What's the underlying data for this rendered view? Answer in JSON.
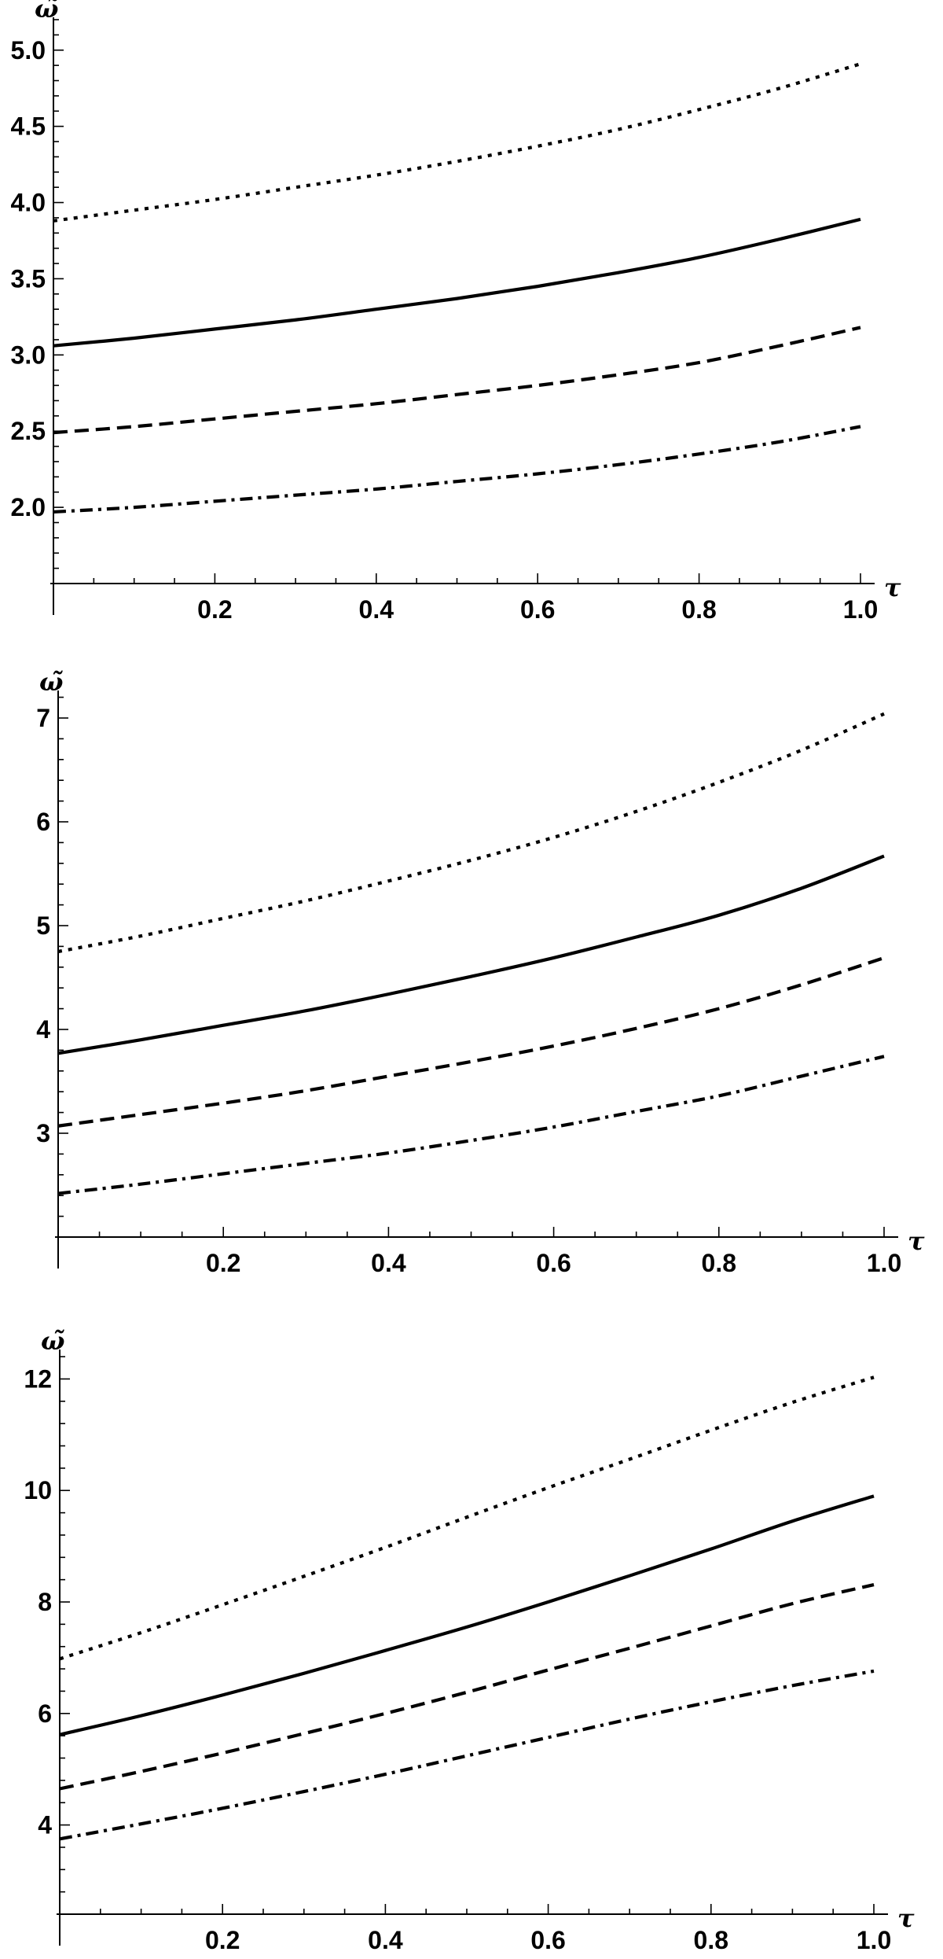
{
  "chart_data": [
    {
      "type": "line",
      "xlabel": "τ",
      "ylabel": "ω̃",
      "xlim": [
        0,
        1.0
      ],
      "ylim": [
        1.5,
        5.2
      ],
      "x_ticks": [
        0.2,
        0.4,
        0.6,
        0.8,
        1.0
      ],
      "x_tick_labels": [
        "0.2",
        "0.4",
        "0.6",
        "0.8",
        "1.0"
      ],
      "y_ticks": [
        2.0,
        2.5,
        3.0,
        3.5,
        4.0,
        4.5,
        5.0
      ],
      "y_tick_labels": [
        "2.0",
        "2.5",
        "3.0",
        "3.5",
        "4.0",
        "4.5",
        "5.0"
      ],
      "x": [
        0,
        0.1,
        0.2,
        0.3,
        0.4,
        0.5,
        0.6,
        0.7,
        0.8,
        0.9,
        1.0
      ],
      "series": [
        {
          "style": "dotted",
          "values": [
            3.88,
            3.95,
            4.02,
            4.1,
            4.18,
            4.27,
            4.37,
            4.48,
            4.61,
            4.75,
            4.91
          ]
        },
        {
          "style": "solid",
          "values": [
            3.06,
            3.11,
            3.17,
            3.23,
            3.3,
            3.37,
            3.45,
            3.54,
            3.64,
            3.76,
            3.89
          ]
        },
        {
          "style": "dashed",
          "values": [
            2.49,
            2.53,
            2.58,
            2.63,
            2.68,
            2.74,
            2.8,
            2.87,
            2.95,
            3.06,
            3.18
          ]
        },
        {
          "style": "dash-dot",
          "values": [
            1.97,
            2.0,
            2.04,
            2.08,
            2.12,
            2.17,
            2.22,
            2.28,
            2.35,
            2.43,
            2.53
          ]
        }
      ]
    },
    {
      "type": "line",
      "xlabel": "τ",
      "ylabel": "ω̃",
      "xlim": [
        0,
        1.0
      ],
      "ylim": [
        2.0,
        7.25
      ],
      "x_ticks": [
        0.2,
        0.4,
        0.6,
        0.8,
        1.0
      ],
      "x_tick_labels": [
        "0.2",
        "0.4",
        "0.6",
        "0.8",
        "1.0"
      ],
      "y_ticks": [
        3,
        4,
        5,
        6,
        7
      ],
      "y_tick_labels": [
        "3",
        "4",
        "5",
        "6",
        "7"
      ],
      "x": [
        0,
        0.1,
        0.2,
        0.3,
        0.4,
        0.5,
        0.6,
        0.7,
        0.8,
        0.9,
        1.0
      ],
      "series": [
        {
          "style": "dotted",
          "values": [
            4.75,
            4.9,
            5.07,
            5.24,
            5.43,
            5.63,
            5.85,
            6.1,
            6.38,
            6.69,
            7.04
          ]
        },
        {
          "style": "solid",
          "values": [
            3.77,
            3.9,
            4.04,
            4.18,
            4.34,
            4.51,
            4.69,
            4.89,
            5.1,
            5.36,
            5.67
          ]
        },
        {
          "style": "dashed",
          "values": [
            3.07,
            3.18,
            3.29,
            3.41,
            3.55,
            3.69,
            3.84,
            4.01,
            4.2,
            4.43,
            4.69
          ]
        },
        {
          "style": "dash-dot",
          "values": [
            2.42,
            2.51,
            2.61,
            2.71,
            2.81,
            2.93,
            3.06,
            3.21,
            3.36,
            3.55,
            3.74
          ]
        }
      ]
    },
    {
      "type": "line",
      "xlabel": "τ",
      "ylabel": "ω̃",
      "xlim": [
        0,
        1.0
      ],
      "ylim": [
        2.4,
        12.5
      ],
      "x_ticks": [
        0.2,
        0.4,
        0.6,
        0.8,
        1.0
      ],
      "x_tick_labels": [
        "0.2",
        "0.4",
        "0.6",
        "0.8",
        "1.0"
      ],
      "y_ticks": [
        4,
        6,
        8,
        10,
        12
      ],
      "y_tick_labels": [
        "4",
        "6",
        "8",
        "10",
        "12"
      ],
      "x": [
        0,
        0.1,
        0.2,
        0.3,
        0.4,
        0.5,
        0.6,
        0.7,
        0.8,
        0.9,
        1.0
      ],
      "series": [
        {
          "style": "dotted",
          "values": [
            6.98,
            7.45,
            7.95,
            8.46,
            8.98,
            9.52,
            10.05,
            10.56,
            11.08,
            11.58,
            12.03
          ]
        },
        {
          "style": "solid",
          "values": [
            5.62,
            5.96,
            6.33,
            6.72,
            7.13,
            7.55,
            8.0,
            8.47,
            8.95,
            9.45,
            9.9
          ]
        },
        {
          "style": "dashed",
          "values": [
            4.65,
            4.96,
            5.29,
            5.64,
            6.0,
            6.38,
            6.78,
            7.17,
            7.57,
            7.97,
            8.31
          ]
        },
        {
          "style": "dash-dot",
          "values": [
            3.75,
            4.02,
            4.3,
            4.6,
            4.91,
            5.24,
            5.57,
            5.9,
            6.21,
            6.5,
            6.76
          ]
        }
      ]
    }
  ]
}
